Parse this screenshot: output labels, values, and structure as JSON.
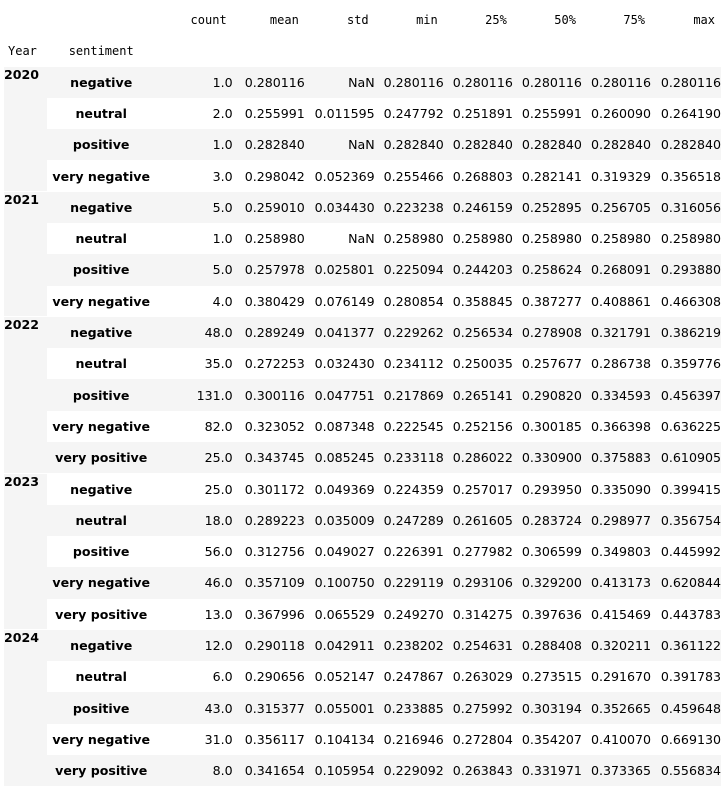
{
  "columns": [
    "count",
    "mean",
    "std",
    "min",
    "25%",
    "50%",
    "75%",
    "max"
  ],
  "index_names": [
    "Year",
    "sentiment"
  ],
  "groups": [
    {
      "year": "2020",
      "rows": [
        {
          "sentiment": "negative",
          "values": [
            "1.0",
            "0.280116",
            "NaN",
            "0.280116",
            "0.280116",
            "0.280116",
            "0.280116",
            "0.280116"
          ]
        },
        {
          "sentiment": "neutral",
          "values": [
            "2.0",
            "0.255991",
            "0.011595",
            "0.247792",
            "0.251891",
            "0.255991",
            "0.260090",
            "0.264190"
          ]
        },
        {
          "sentiment": "positive",
          "values": [
            "1.0",
            "0.282840",
            "NaN",
            "0.282840",
            "0.282840",
            "0.282840",
            "0.282840",
            "0.282840"
          ]
        },
        {
          "sentiment": "very negative",
          "values": [
            "3.0",
            "0.298042",
            "0.052369",
            "0.255466",
            "0.268803",
            "0.282141",
            "0.319329",
            "0.356518"
          ]
        }
      ]
    },
    {
      "year": "2021",
      "rows": [
        {
          "sentiment": "negative",
          "values": [
            "5.0",
            "0.259010",
            "0.034430",
            "0.223238",
            "0.246159",
            "0.252895",
            "0.256705",
            "0.316056"
          ]
        },
        {
          "sentiment": "neutral",
          "values": [
            "1.0",
            "0.258980",
            "NaN",
            "0.258980",
            "0.258980",
            "0.258980",
            "0.258980",
            "0.258980"
          ]
        },
        {
          "sentiment": "positive",
          "values": [
            "5.0",
            "0.257978",
            "0.025801",
            "0.225094",
            "0.244203",
            "0.258624",
            "0.268091",
            "0.293880"
          ]
        },
        {
          "sentiment": "very negative",
          "values": [
            "4.0",
            "0.380429",
            "0.076149",
            "0.280854",
            "0.358845",
            "0.387277",
            "0.408861",
            "0.466308"
          ]
        }
      ]
    },
    {
      "year": "2022",
      "rows": [
        {
          "sentiment": "negative",
          "values": [
            "48.0",
            "0.289249",
            "0.041377",
            "0.229262",
            "0.256534",
            "0.278908",
            "0.321791",
            "0.386219"
          ]
        },
        {
          "sentiment": "neutral",
          "values": [
            "35.0",
            "0.272253",
            "0.032430",
            "0.234112",
            "0.250035",
            "0.257677",
            "0.286738",
            "0.359776"
          ]
        },
        {
          "sentiment": "positive",
          "values": [
            "131.0",
            "0.300116",
            "0.047751",
            "0.217869",
            "0.265141",
            "0.290820",
            "0.334593",
            "0.456397"
          ]
        },
        {
          "sentiment": "very negative",
          "values": [
            "82.0",
            "0.323052",
            "0.087348",
            "0.222545",
            "0.252156",
            "0.300185",
            "0.366398",
            "0.636225"
          ]
        },
        {
          "sentiment": "very positive",
          "values": [
            "25.0",
            "0.343745",
            "0.085245",
            "0.233118",
            "0.286022",
            "0.330900",
            "0.375883",
            "0.610905"
          ]
        }
      ]
    },
    {
      "year": "2023",
      "rows": [
        {
          "sentiment": "negative",
          "values": [
            "25.0",
            "0.301172",
            "0.049369",
            "0.224359",
            "0.257017",
            "0.293950",
            "0.335090",
            "0.399415"
          ]
        },
        {
          "sentiment": "neutral",
          "values": [
            "18.0",
            "0.289223",
            "0.035009",
            "0.247289",
            "0.261605",
            "0.283724",
            "0.298977",
            "0.356754"
          ]
        },
        {
          "sentiment": "positive",
          "values": [
            "56.0",
            "0.312756",
            "0.049027",
            "0.226391",
            "0.277982",
            "0.306599",
            "0.349803",
            "0.445992"
          ]
        },
        {
          "sentiment": "very negative",
          "values": [
            "46.0",
            "0.357109",
            "0.100750",
            "0.229119",
            "0.293106",
            "0.329200",
            "0.413173",
            "0.620844"
          ]
        },
        {
          "sentiment": "very positive",
          "values": [
            "13.0",
            "0.367996",
            "0.065529",
            "0.249270",
            "0.314275",
            "0.397636",
            "0.415469",
            "0.443783"
          ]
        }
      ]
    },
    {
      "year": "2024",
      "rows": [
        {
          "sentiment": "negative",
          "values": [
            "12.0",
            "0.290118",
            "0.042911",
            "0.238202",
            "0.254631",
            "0.288408",
            "0.320211",
            "0.361122"
          ]
        },
        {
          "sentiment": "neutral",
          "values": [
            "6.0",
            "0.290656",
            "0.052147",
            "0.247867",
            "0.263029",
            "0.273515",
            "0.291670",
            "0.391783"
          ]
        },
        {
          "sentiment": "positive",
          "values": [
            "43.0",
            "0.315377",
            "0.055001",
            "0.233885",
            "0.275992",
            "0.303194",
            "0.352665",
            "0.459648"
          ]
        },
        {
          "sentiment": "very negative",
          "values": [
            "31.0",
            "0.356117",
            "0.104134",
            "0.216946",
            "0.272804",
            "0.354207",
            "0.410070",
            "0.669130"
          ]
        },
        {
          "sentiment": "very positive",
          "values": [
            "8.0",
            "0.341654",
            "0.105954",
            "0.229092",
            "0.263843",
            "0.331971",
            "0.373365",
            "0.556834"
          ]
        }
      ]
    }
  ]
}
